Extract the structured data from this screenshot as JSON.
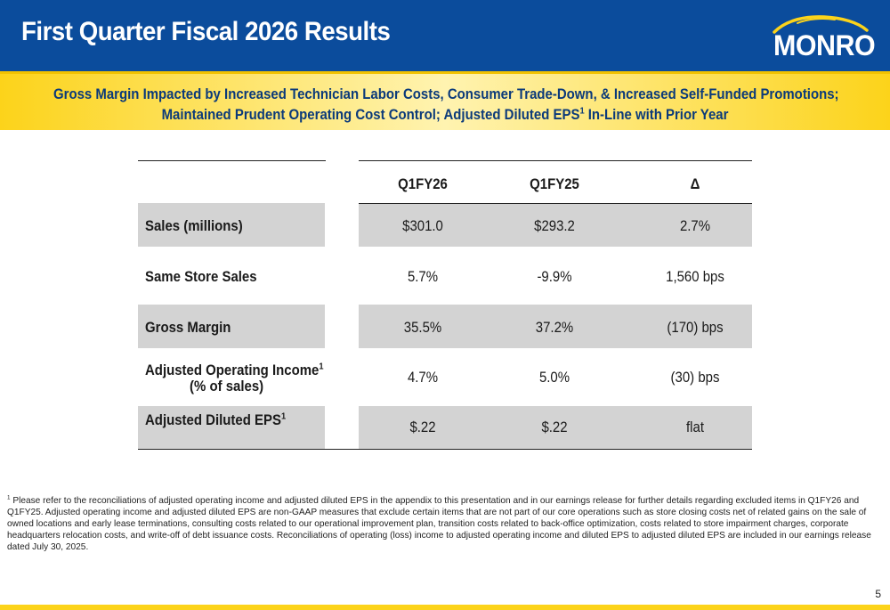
{
  "header": {
    "title": "First Quarter Fiscal 2026 Results",
    "logo_text": "MONRO",
    "background_color": "#0b4c9c"
  },
  "banner": {
    "line1": "Gross Margin Impacted by Increased Technician Labor Costs, Consumer Trade-Down, & Increased Self-Funded Promotions;",
    "line2_before": "Maintained Prudent Operating Cost Control; Adjusted Diluted EPS",
    "line2_sup": "1",
    "line2_after": " In-Line with Prior Year",
    "color": "#fcd31a"
  },
  "table": {
    "columns": [
      "Q1FY26",
      "Q1FY25",
      "Δ"
    ],
    "rows": [
      {
        "label": "Sales (millions)",
        "q1fy26": "$301.0",
        "q1fy25": "$293.2",
        "delta": "2.7%"
      },
      {
        "label": "Same Store Sales",
        "q1fy26": "5.7%",
        "q1fy25": "-9.9%",
        "delta": "1,560 bps"
      },
      {
        "label": "Gross Margin",
        "q1fy26": "35.5%",
        "q1fy25": "37.2%",
        "delta": "(170) bps"
      },
      {
        "label": "Adjusted Operating Income",
        "label_sup": "1",
        "label_line2": "(% of sales)",
        "q1fy26": "4.7%",
        "q1fy25": "5.0%",
        "delta": "(30) bps"
      },
      {
        "label": "Adjusted Diluted EPS",
        "label_sup": "1",
        "q1fy26": "$.22",
        "q1fy25": "$.22",
        "delta": "flat"
      }
    ],
    "shade_color": "#d3d3d3"
  },
  "footnote": {
    "marker": "1",
    "text": "Please refer to the reconciliations of adjusted operating income and adjusted diluted EPS in the appendix to this presentation and in our earnings release for further details regarding excluded items in Q1FY26 and Q1FY25. Adjusted operating income and adjusted diluted EPS are non-GAAP measures that exclude certain items that are not part of our core operations such as store closing costs net of related gains on the sale of owned locations and early lease terminations, consulting costs related to our operational improvement plan, transition costs related to back-office optimization, costs related to store impairment charges, corporate headquarters relocation costs, and write-off of debt issuance costs.  Reconciliations of operating (loss) income to adjusted operating income and diluted EPS to adjusted diluted EPS are included in our earnings release dated July 30, 2025."
  },
  "page_number": "5"
}
